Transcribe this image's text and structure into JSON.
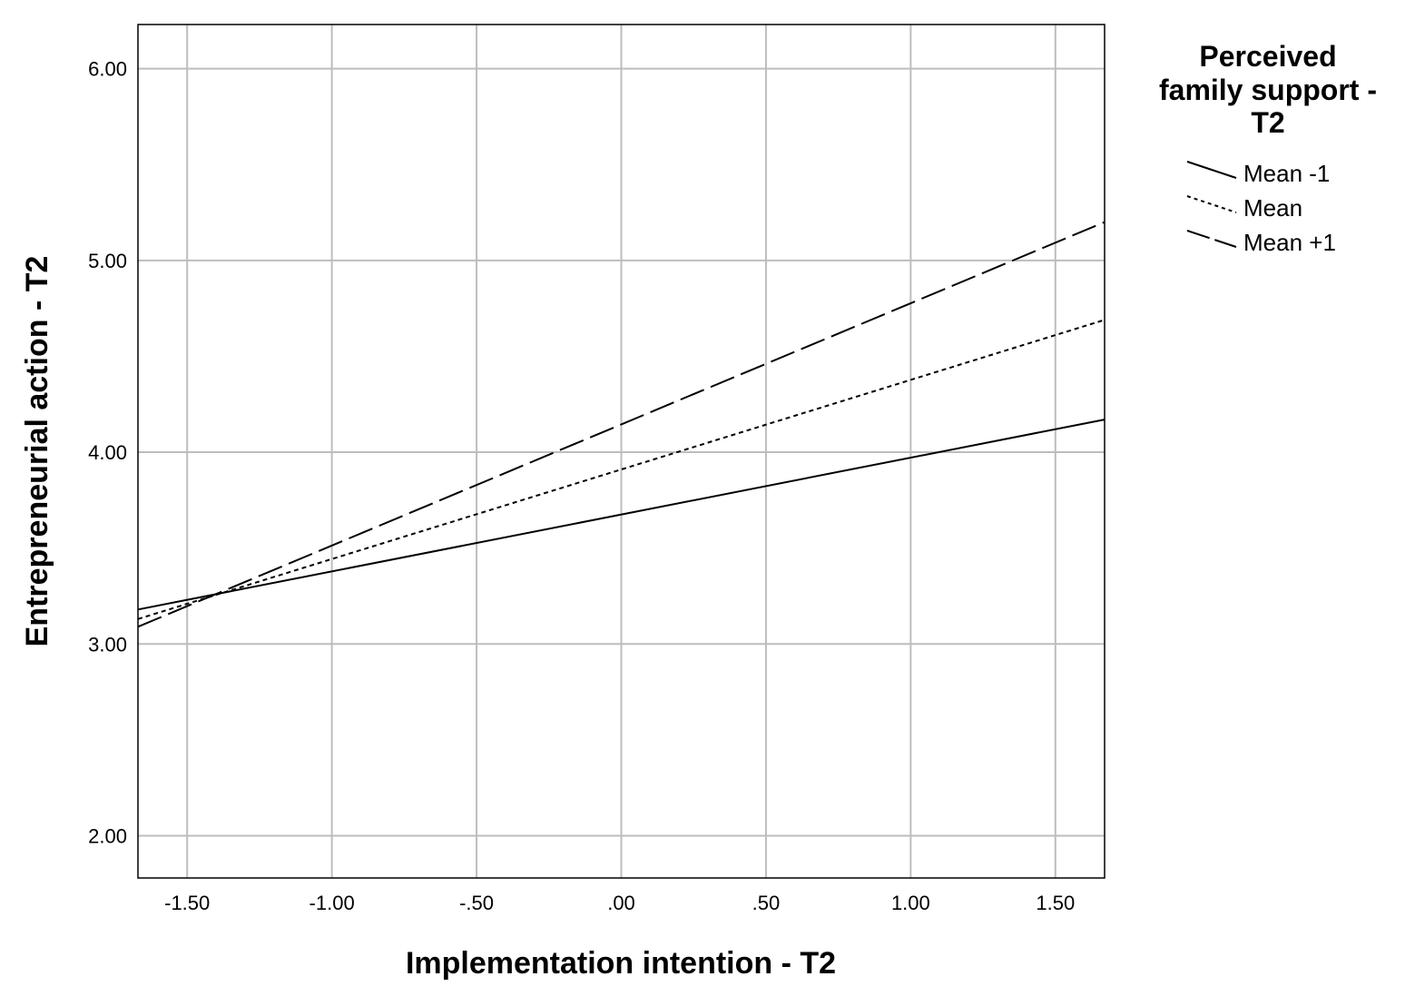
{
  "chart_data": {
    "type": "line",
    "xlabel": "Implementation intention - T2",
    "ylabel": "Entrepreneurial action - T2",
    "xlim": [
      -1.67,
      1.67
    ],
    "ylim": [
      1.78,
      6.23
    ],
    "x_ticks": [
      {
        "value": -1.5,
        "label": "-1.50"
      },
      {
        "value": -1.0,
        "label": "-1.00"
      },
      {
        "value": -0.5,
        "label": "-.50"
      },
      {
        "value": 0.0,
        "label": ".00"
      },
      {
        "value": 0.5,
        "label": ".50"
      },
      {
        "value": 1.0,
        "label": "1.00"
      },
      {
        "value": 1.5,
        "label": "1.50"
      }
    ],
    "y_ticks": [
      {
        "value": 2.0,
        "label": "2.00"
      },
      {
        "value": 3.0,
        "label": "3.00"
      },
      {
        "value": 4.0,
        "label": "4.00"
      },
      {
        "value": 5.0,
        "label": "5.00"
      },
      {
        "value": 6.0,
        "label": "6.00"
      }
    ],
    "grid": true,
    "legend": {
      "title_lines": [
        "Perceived",
        "family support -",
        "T2"
      ],
      "placement": "right"
    },
    "series": [
      {
        "name": "Mean -1",
        "dash": "solid",
        "x": [
          -1.67,
          1.67
        ],
        "y": [
          3.18,
          4.17
        ]
      },
      {
        "name": "Mean",
        "dash": "dotted",
        "x": [
          -1.67,
          1.67
        ],
        "y": [
          3.13,
          4.69
        ]
      },
      {
        "name": "Mean +1",
        "dash": "dashed",
        "x": [
          -1.67,
          1.67
        ],
        "y": [
          3.09,
          5.2
        ]
      }
    ]
  }
}
